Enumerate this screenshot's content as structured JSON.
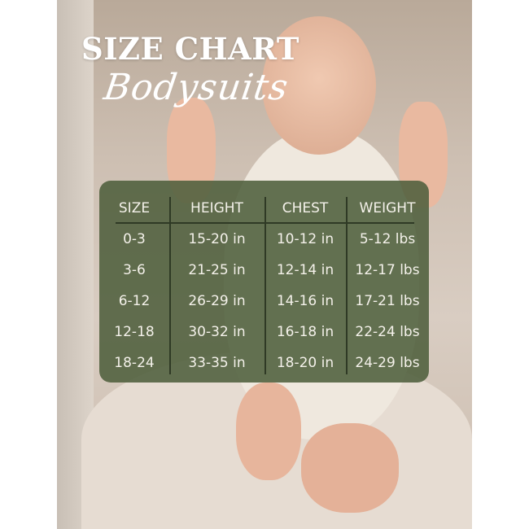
{
  "title": "SIZE CHART",
  "subtitle": "Bodysuits",
  "colors": {
    "panel": "#4f5e3c",
    "text": "#f4f1ea"
  },
  "table": {
    "headers": [
      "SIZE",
      "HEIGHT",
      "CHEST",
      "WEIGHT"
    ],
    "rows": [
      [
        "0-3",
        "15-20 in",
        "10-12 in",
        "5-12 lbs"
      ],
      [
        "3-6",
        "21-25 in",
        "12-14 in",
        "12-17 lbs"
      ],
      [
        "6-12",
        "26-29 in",
        "14-16 in",
        "17-21 lbs"
      ],
      [
        "12-18",
        "30-32 in",
        "16-18 in",
        "22-24 lbs"
      ],
      [
        "18-24",
        "33-35 in",
        "18-20 in",
        "24-29 lbs"
      ]
    ]
  }
}
